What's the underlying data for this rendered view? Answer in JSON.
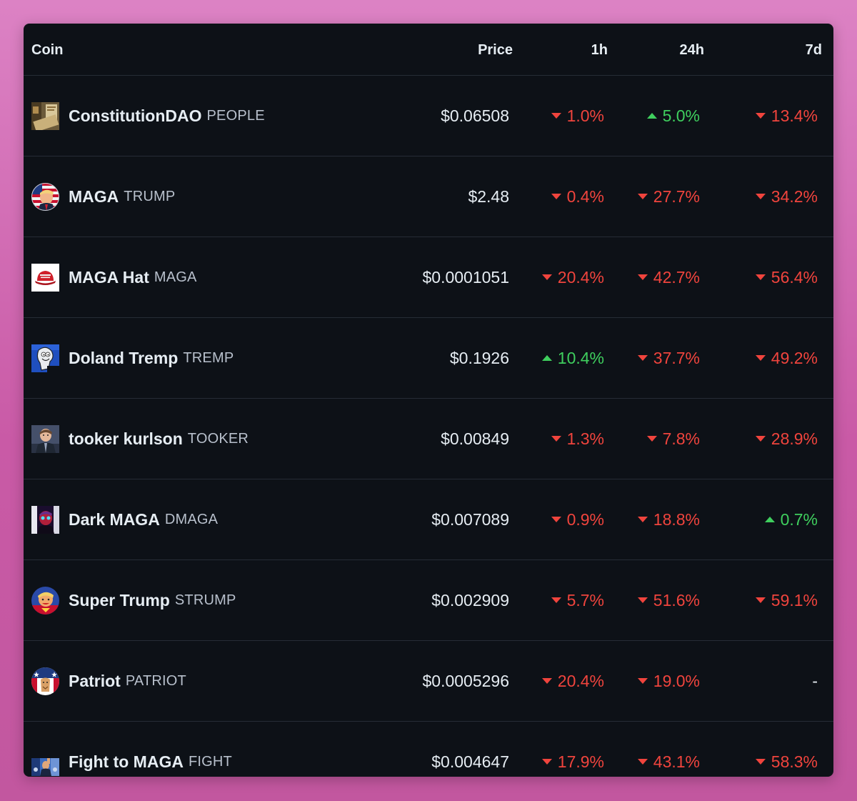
{
  "colors": {
    "background_gradient": [
      "#dc82c4",
      "#c2579f"
    ],
    "card": "#0d1117",
    "divider": "#262c36",
    "up": "#3fcf5e",
    "down": "#f0443d"
  },
  "table": {
    "headers": {
      "coin": "Coin",
      "price": "Price",
      "h1": "1h",
      "h24": "24h",
      "d7": "7d"
    },
    "rows": [
      {
        "name": "ConstitutionDAO",
        "symbol": "PEOPLE",
        "icon": "constitution-document-icon",
        "price": "$0.06508",
        "h1": {
          "value": "1.0%",
          "dir": "down"
        },
        "h24": {
          "value": "5.0%",
          "dir": "up"
        },
        "d7": {
          "value": "13.4%",
          "dir": "down"
        }
      },
      {
        "name": "MAGA",
        "symbol": "TRUMP",
        "icon": "trump-flag-portrait-icon",
        "price": "$2.48",
        "h1": {
          "value": "0.4%",
          "dir": "down"
        },
        "h24": {
          "value": "27.7%",
          "dir": "down"
        },
        "d7": {
          "value": "34.2%",
          "dir": "down"
        }
      },
      {
        "name": "MAGA Hat",
        "symbol": "MAGA",
        "icon": "red-hat-icon",
        "price": "$0.0001051",
        "h1": {
          "value": "20.4%",
          "dir": "down"
        },
        "h24": {
          "value": "42.7%",
          "dir": "down"
        },
        "d7": {
          "value": "56.4%",
          "dir": "down"
        }
      },
      {
        "name": "Doland Tremp",
        "symbol": "TREMP",
        "icon": "cartoon-character-icon",
        "price": "$0.1926",
        "h1": {
          "value": "10.4%",
          "dir": "up"
        },
        "h24": {
          "value": "37.7%",
          "dir": "down"
        },
        "d7": {
          "value": "49.2%",
          "dir": "down"
        }
      },
      {
        "name": "tooker kurlson",
        "symbol": "TOOKER",
        "icon": "cartoon-anchor-icon",
        "price": "$0.00849",
        "h1": {
          "value": "1.3%",
          "dir": "down"
        },
        "h24": {
          "value": "7.8%",
          "dir": "down"
        },
        "d7": {
          "value": "28.9%",
          "dir": "down"
        }
      },
      {
        "name": "Dark MAGA",
        "symbol": "DMAGA",
        "icon": "dark-laser-eyes-icon",
        "price": "$0.007089",
        "h1": {
          "value": "0.9%",
          "dir": "down"
        },
        "h24": {
          "value": "18.8%",
          "dir": "down"
        },
        "d7": {
          "value": "0.7%",
          "dir": "up"
        }
      },
      {
        "name": "Super Trump",
        "symbol": "STRUMP",
        "icon": "superhero-portrait-icon",
        "price": "$0.002909",
        "h1": {
          "value": "5.7%",
          "dir": "down"
        },
        "h24": {
          "value": "51.6%",
          "dir": "down"
        },
        "d7": {
          "value": "59.1%",
          "dir": "down"
        }
      },
      {
        "name": "Patriot",
        "symbol": "PATRIOT",
        "icon": "patriot-eagle-icon",
        "price": "$0.0005296",
        "h1": {
          "value": "20.4%",
          "dir": "down"
        },
        "h24": {
          "value": "19.0%",
          "dir": "down"
        },
        "d7": {
          "value": "-",
          "dir": "none"
        }
      },
      {
        "name": "Fight to MAGA",
        "symbol": "FIGHT",
        "icon": "fist-raised-photo-icon",
        "price": "$0.004647",
        "h1": {
          "value": "17.9%",
          "dir": "down"
        },
        "h24": {
          "value": "43.1%",
          "dir": "down"
        },
        "d7": {
          "value": "58.3%",
          "dir": "down"
        }
      }
    ]
  }
}
